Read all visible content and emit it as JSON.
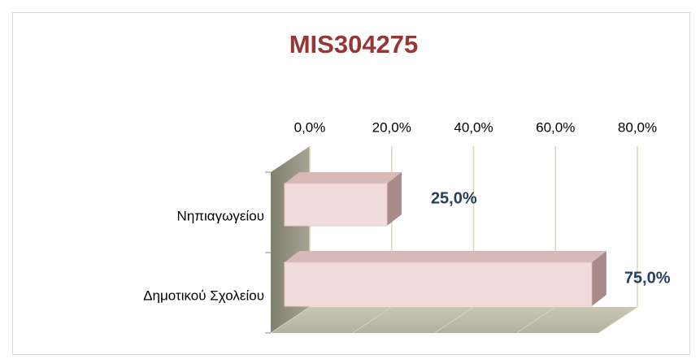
{
  "chart_data": {
    "type": "bar",
    "orientation": "horizontal",
    "title": "MIS304275",
    "categories": [
      "Νηπιαγωγείου",
      "Δημοτικού Σχολείου"
    ],
    "values": [
      25,
      75
    ],
    "value_labels": [
      "25,0%",
      "75,0%"
    ],
    "color": "#f2dcdb",
    "xlim": [
      0,
      80
    ],
    "xticks": [
      {
        "value": 0,
        "label": "0,0%"
      },
      {
        "value": 20,
        "label": "20,0%"
      },
      {
        "value": 40,
        "label": "40,0%"
      },
      {
        "value": 60,
        "label": "60,0%"
      },
      {
        "value": 80,
        "label": "80,0%"
      }
    ],
    "grid": true
  }
}
